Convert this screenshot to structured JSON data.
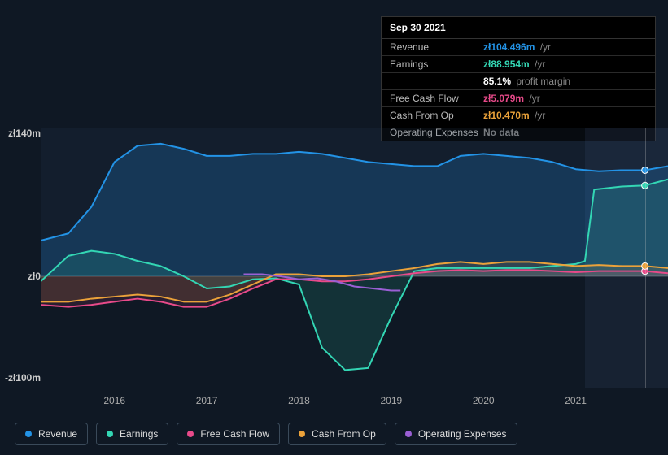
{
  "tooltip": {
    "date": "Sep 30 2021",
    "rows": [
      {
        "label": "Revenue",
        "value": "zł104.496m",
        "unit": "/yr",
        "color": "#2393e6"
      },
      {
        "label": "Earnings",
        "value": "zł88.954m",
        "unit": "/yr",
        "color": "#33d6b4"
      },
      {
        "label": "",
        "value": "85.1%",
        "unit": "profit margin",
        "color": "#ffffff"
      },
      {
        "label": "Free Cash Flow",
        "value": "zł5.079m",
        "unit": "/yr",
        "color": "#e84a8a"
      },
      {
        "label": "Cash From Op",
        "value": "zł10.470m",
        "unit": "/yr",
        "color": "#eba23a"
      },
      {
        "label": "Operating Expenses",
        "value": "No data",
        "unit": "",
        "color": "#888888"
      }
    ]
  },
  "chart": {
    "type": "area-line",
    "background": "#0f1824",
    "plot_bg_top": "#16202e",
    "plot_bg_bottom": "#101a28",
    "y_labels": [
      {
        "text": "zł140m",
        "y": 140
      },
      {
        "text": "zł0",
        "y": 0
      },
      {
        "text": "-zł100m",
        "y": -100
      }
    ],
    "x_labels": [
      "2016",
      "2017",
      "2018",
      "2019",
      "2020",
      "2021"
    ],
    "x_range": [
      2015.2,
      2022.0
    ],
    "y_range": [
      -110,
      145
    ],
    "marker_x": 2021.75,
    "forecast_x": 2021.1,
    "series": [
      {
        "name": "Revenue",
        "color": "#2393e6",
        "fill": "rgba(35,147,230,0.22)",
        "fill_to_zero": true,
        "points": [
          [
            2015.2,
            35
          ],
          [
            2015.5,
            42
          ],
          [
            2015.75,
            68
          ],
          [
            2016,
            112
          ],
          [
            2016.25,
            128
          ],
          [
            2016.5,
            130
          ],
          [
            2016.75,
            125
          ],
          [
            2017,
            118
          ],
          [
            2017.25,
            118
          ],
          [
            2017.5,
            120
          ],
          [
            2017.75,
            120
          ],
          [
            2018,
            122
          ],
          [
            2018.25,
            120
          ],
          [
            2018.5,
            116
          ],
          [
            2018.75,
            112
          ],
          [
            2019,
            110
          ],
          [
            2019.25,
            108
          ],
          [
            2019.5,
            108
          ],
          [
            2019.75,
            118
          ],
          [
            2020,
            120
          ],
          [
            2020.25,
            118
          ],
          [
            2020.5,
            116
          ],
          [
            2020.75,
            112
          ],
          [
            2021,
            105
          ],
          [
            2021.25,
            103
          ],
          [
            2021.5,
            104
          ],
          [
            2021.75,
            104
          ],
          [
            2022,
            108
          ]
        ]
      },
      {
        "name": "Earnings",
        "color": "#33d6b4",
        "fill": "rgba(51,214,180,0.14)",
        "fill_to_zero": true,
        "points": [
          [
            2015.2,
            -5
          ],
          [
            2015.5,
            20
          ],
          [
            2015.75,
            25
          ],
          [
            2016,
            22
          ],
          [
            2016.25,
            15
          ],
          [
            2016.5,
            10
          ],
          [
            2016.75,
            0
          ],
          [
            2017,
            -12
          ],
          [
            2017.25,
            -10
          ],
          [
            2017.5,
            -3
          ],
          [
            2017.75,
            -2
          ],
          [
            2018,
            -8
          ],
          [
            2018.25,
            -70
          ],
          [
            2018.5,
            -92
          ],
          [
            2018.75,
            -90
          ],
          [
            2019,
            -40
          ],
          [
            2019.25,
            5
          ],
          [
            2019.5,
            8
          ],
          [
            2019.75,
            8
          ],
          [
            2020,
            8
          ],
          [
            2020.25,
            8
          ],
          [
            2020.5,
            8
          ],
          [
            2020.75,
            10
          ],
          [
            2021,
            12
          ],
          [
            2021.1,
            15
          ],
          [
            2021.2,
            85
          ],
          [
            2021.5,
            88
          ],
          [
            2021.75,
            89
          ],
          [
            2022,
            95
          ]
        ]
      },
      {
        "name": "Free Cash Flow",
        "color": "#e84a8a",
        "fill": "rgba(232,74,138,0.12)",
        "fill_to_zero": true,
        "points": [
          [
            2015.2,
            -28
          ],
          [
            2015.5,
            -30
          ],
          [
            2015.75,
            -28
          ],
          [
            2016,
            -25
          ],
          [
            2016.25,
            -22
          ],
          [
            2016.5,
            -25
          ],
          [
            2016.75,
            -30
          ],
          [
            2017,
            -30
          ],
          [
            2017.25,
            -22
          ],
          [
            2017.5,
            -12
          ],
          [
            2017.75,
            -3
          ],
          [
            2018,
            -3
          ],
          [
            2018.25,
            -5
          ],
          [
            2018.5,
            -5
          ],
          [
            2018.75,
            -3
          ],
          [
            2019,
            0
          ],
          [
            2019.25,
            3
          ],
          [
            2019.5,
            5
          ],
          [
            2019.75,
            6
          ],
          [
            2020,
            5
          ],
          [
            2020.25,
            6
          ],
          [
            2020.5,
            6
          ],
          [
            2020.75,
            5
          ],
          [
            2021,
            4
          ],
          [
            2021.25,
            5
          ],
          [
            2021.5,
            5
          ],
          [
            2021.75,
            5
          ],
          [
            2022,
            3
          ]
        ]
      },
      {
        "name": "Cash From Op",
        "color": "#eba23a",
        "fill": "rgba(235,162,58,0.12)",
        "fill_to_zero": true,
        "points": [
          [
            2015.2,
            -25
          ],
          [
            2015.5,
            -25
          ],
          [
            2015.75,
            -22
          ],
          [
            2016,
            -20
          ],
          [
            2016.25,
            -18
          ],
          [
            2016.5,
            -20
          ],
          [
            2016.75,
            -25
          ],
          [
            2017,
            -25
          ],
          [
            2017.25,
            -18
          ],
          [
            2017.5,
            -8
          ],
          [
            2017.75,
            2
          ],
          [
            2018,
            2
          ],
          [
            2018.25,
            0
          ],
          [
            2018.5,
            0
          ],
          [
            2018.75,
            2
          ],
          [
            2019,
            5
          ],
          [
            2019.25,
            8
          ],
          [
            2019.5,
            12
          ],
          [
            2019.75,
            14
          ],
          [
            2020,
            12
          ],
          [
            2020.25,
            14
          ],
          [
            2020.5,
            14
          ],
          [
            2020.75,
            12
          ],
          [
            2021,
            10
          ],
          [
            2021.25,
            11
          ],
          [
            2021.5,
            10
          ],
          [
            2021.75,
            10
          ],
          [
            2022,
            8
          ]
        ]
      },
      {
        "name": "Operating Expenses",
        "color": "#9a5fd4",
        "fill": null,
        "fill_to_zero": false,
        "points": [
          [
            2017.4,
            2
          ],
          [
            2017.6,
            2
          ],
          [
            2017.8,
            0
          ],
          [
            2018,
            -3
          ],
          [
            2018.2,
            -2
          ],
          [
            2018.4,
            -5
          ],
          [
            2018.6,
            -10
          ],
          [
            2018.8,
            -12
          ],
          [
            2019,
            -14
          ],
          [
            2019.1,
            -14
          ]
        ]
      }
    ],
    "legend": [
      {
        "label": "Revenue",
        "color": "#2393e6"
      },
      {
        "label": "Earnings",
        "color": "#33d6b4"
      },
      {
        "label": "Free Cash Flow",
        "color": "#e84a8a"
      },
      {
        "label": "Cash From Op",
        "color": "#eba23a"
      },
      {
        "label": "Operating Expenses",
        "color": "#9a5fd4"
      }
    ]
  }
}
